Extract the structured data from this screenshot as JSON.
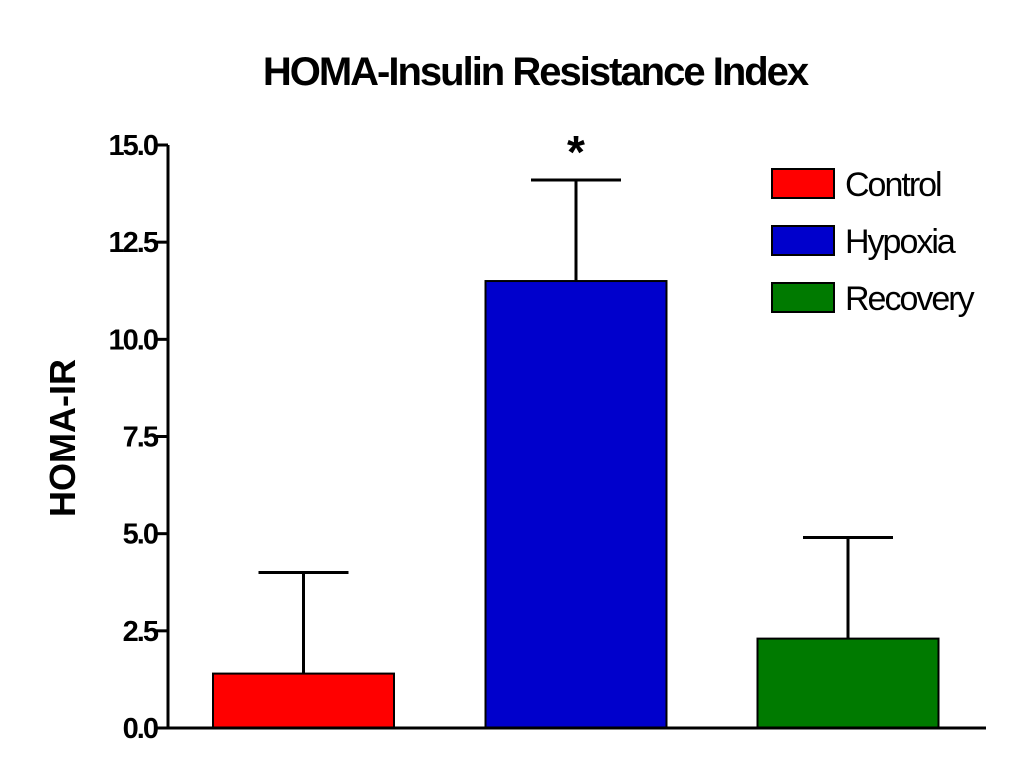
{
  "chart_data": {
    "type": "bar",
    "title": "HOMA-Insulin  Resistance Index",
    "xlabel": "",
    "ylabel": "HOMA-IR",
    "ylim": [
      0,
      15
    ],
    "yticks": [
      "0.0",
      "2.5",
      "5.0",
      "7.5",
      "10.0",
      "12.5",
      "15.0"
    ],
    "ytick_values": [
      0,
      2.5,
      5,
      7.5,
      10,
      12.5,
      15
    ],
    "categories": [
      "Control",
      "Hypoxia",
      "Recovery"
    ],
    "values": [
      1.4,
      11.5,
      2.3
    ],
    "error_upper": [
      2.6,
      2.6,
      2.6
    ],
    "colors": [
      "#ff0000",
      "#0000cc",
      "#007a00"
    ],
    "annotations": [
      {
        "category": "Hypoxia",
        "text": "*"
      }
    ],
    "legend": {
      "position": "top-right",
      "entries": [
        {
          "label": "Control",
          "color": "#ff0000"
        },
        {
          "label": "Hypoxia",
          "color": "#0000cc"
        },
        {
          "label": "Recovery",
          "color": "#007a00"
        }
      ]
    }
  }
}
